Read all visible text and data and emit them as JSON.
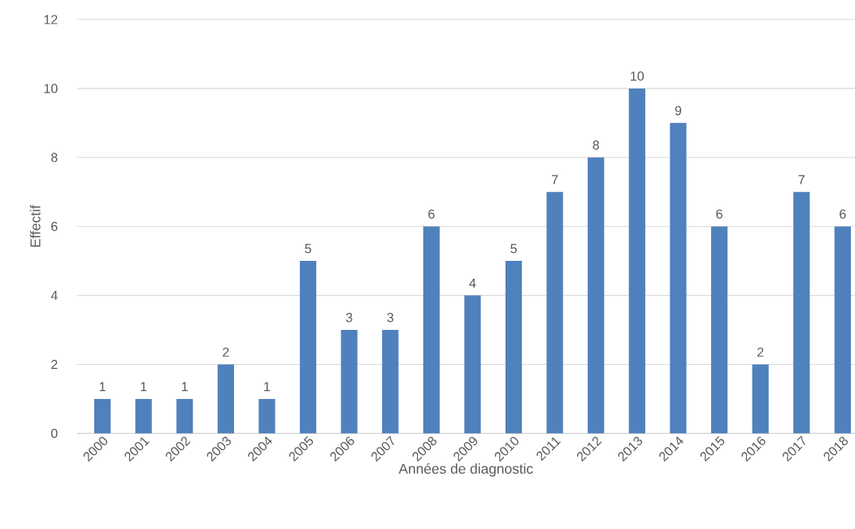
{
  "chart_data": {
    "type": "bar",
    "xlabel": "Années de diagnostic",
    "ylabel": "Effectif",
    "categories": [
      "2000",
      "2001",
      "2002",
      "2003",
      "2004",
      "2005",
      "2006",
      "2007",
      "2008",
      "2009",
      "2010",
      "2011",
      "2012",
      "2013",
      "2014",
      "2015",
      "2016",
      "2017",
      "2018"
    ],
    "values": [
      1,
      1,
      1,
      2,
      1,
      5,
      3,
      3,
      6,
      4,
      5,
      7,
      8,
      10,
      9,
      6,
      2,
      7,
      6
    ],
    "color": "#4f81bd",
    "ylim": [
      0,
      12
    ],
    "yticks": [
      0,
      2,
      4,
      6,
      8,
      10,
      12
    ],
    "grid": "y",
    "data_labels": true
  }
}
